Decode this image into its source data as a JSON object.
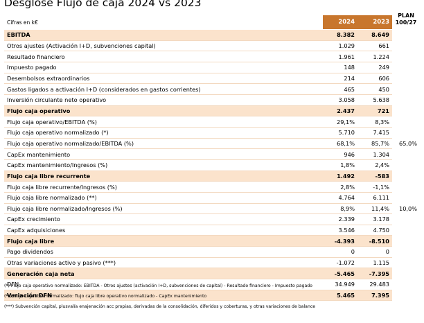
{
  "title": "Desglose Flujo de caja 2024 vs 2023",
  "units": "Cifras en k€",
  "columns": {
    "y2024": "2024",
    "y2023": "2023",
    "plan": "PLAN 100/27"
  },
  "rows": [
    {
      "label": "EBITDA",
      "v2024": "8.382",
      "v2023": "8.649",
      "plan": "",
      "bold": true
    },
    {
      "label": "Otros ajustes (Activación I+D, subvenciones capital)",
      "v2024": "1.029",
      "v2023": "661",
      "plan": "",
      "bold": false
    },
    {
      "label": "Resultado financiero",
      "v2024": "1.961",
      "v2023": "1.224",
      "plan": "",
      "bold": false
    },
    {
      "label": "Impuesto pagado",
      "v2024": "148",
      "v2023": "249",
      "plan": "",
      "bold": false
    },
    {
      "label": "Desembolsos extraordinarios",
      "v2024": "214",
      "v2023": "606",
      "plan": "",
      "bold": false
    },
    {
      "label": "Gastos ligados a activación I+D (considerados en gastos corrientes)",
      "v2024": "465",
      "v2023": "450",
      "plan": "",
      "bold": false
    },
    {
      "label": "Inversión circulante neto operativo",
      "v2024": "3.058",
      "v2023": "5.638",
      "plan": "",
      "bold": false
    },
    {
      "label": "Flujo caja operativo",
      "v2024": "2.437",
      "v2023": "721",
      "plan": "",
      "bold": true
    },
    {
      "label": "Flujo caja operativo/EBITDA (%)",
      "v2024": "29,1%",
      "v2023": "8,3%",
      "plan": "",
      "bold": false
    },
    {
      "label": "Flujo caja operativo normalizado (*)",
      "v2024": "5.710",
      "v2023": "7.415",
      "plan": "",
      "bold": false
    },
    {
      "label": "Flujo caja operativo normalizado/EBITDA (%)",
      "v2024": "68,1%",
      "v2023": "85,7%",
      "plan": "65,0%",
      "bold": false
    },
    {
      "label": "CapEx mantenimiento",
      "v2024": "946",
      "v2023": "1.304",
      "plan": "",
      "bold": false
    },
    {
      "label": "CapEx mantenimiento/Ingresos (%)",
      "v2024": "1,8%",
      "v2023": "2,4%",
      "plan": "",
      "bold": false
    },
    {
      "label": "Flujo caja libre recurrente",
      "v2024": "1.492",
      "v2023": "-583",
      "plan": "",
      "bold": true
    },
    {
      "label": "Flujo caja libre recurrente/Ingresos (%)",
      "v2024": "2,8%",
      "v2023": "-1,1%",
      "plan": "",
      "bold": false
    },
    {
      "label": "Flujo caja libre normalizado (**)",
      "v2024": "4.764",
      "v2023": "6.111",
      "plan": "",
      "bold": false
    },
    {
      "label": "Flujo caja libre normalizado/Ingresos (%)",
      "v2024": "8,9%",
      "v2023": "11,4%",
      "plan": "10,0%",
      "bold": false
    },
    {
      "label": "CapEx crecimiento",
      "v2024": "2.339",
      "v2023": "3.178",
      "plan": "",
      "bold": false
    },
    {
      "label": "CapEx adquisiciones",
      "v2024": "3.546",
      "v2023": "4.750",
      "plan": "",
      "bold": false
    },
    {
      "label": "Flujo caja libre",
      "v2024": "-4.393",
      "v2023": "-8.510",
      "plan": "",
      "bold": true
    },
    {
      "label": "Pago dividendos",
      "v2024": "0",
      "v2023": "0",
      "plan": "",
      "bold": false
    },
    {
      "label": "Otras variaciones activo y pasivo (***)",
      "v2024": "-1.072",
      "v2023": "1.115",
      "plan": "",
      "bold": false
    },
    {
      "label": "Generación caja neta",
      "v2024": "-5.465",
      "v2023": "-7.395",
      "plan": "",
      "bold": true
    },
    {
      "label": "DFN",
      "v2024": "34.949",
      "v2023": "29.483",
      "plan": "",
      "bold": false
    },
    {
      "label": "Variación DFN",
      "v2024": "5.465",
      "v2023": "7.395",
      "plan": "",
      "bold": true
    }
  ],
  "notes": [
    "(*) Flujo caja operativo normalizado:  EBITDA - Otros ajustes (activación I+D, subvenciones de capital) - Resultado financiero - Impuesto pagado",
    "(**) Flujo caja libre normalizado:  flujo caja libre operativo normalizado - CapEx mantenimiento",
    "(***) Subvención capital, plusvalía enajenación acc propias, derivadas de la consolidación, diferidos y coberturas, y otras variaciones de balance"
  ],
  "colors": {
    "accent": "#c8762d",
    "highlight": "#fbe3cc"
  }
}
